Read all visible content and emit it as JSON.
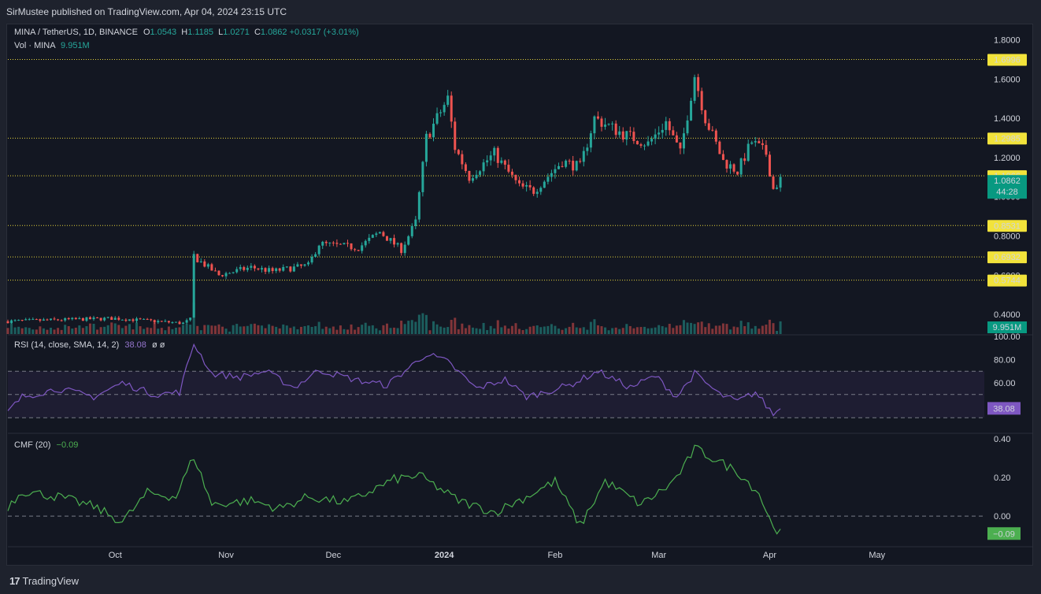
{
  "header": {
    "publisher": "SirMustee published on TradingView.com, Apr 04, 2024 23:15 UTC"
  },
  "symbol": {
    "name": "MINA / TetherUS, 1D, BINANCE",
    "o_label": "O",
    "o": "1.0543",
    "h_label": "H",
    "h": "1.1185",
    "l_label": "L",
    "l": "1.0271",
    "c_label": "C",
    "c": "1.0862",
    "change": "+0.0317 (+3.01%)"
  },
  "volume_legend": {
    "label": "Vol · MINA",
    "value": "9.951M"
  },
  "rsi_legend": {
    "label": "RSI (14, close, SMA, 14, 2)",
    "value": "38.08",
    "extra": "ø ø"
  },
  "cmf_legend": {
    "label": "CMF (20)",
    "value": "−0.09"
  },
  "footer": {
    "brand": "TradingView"
  },
  "colors": {
    "up": "#26a69a",
    "down": "#ef5350",
    "rsi": "#7e57c2",
    "cmf": "#4caf50",
    "level": "#e5d33b",
    "bg": "#131722"
  },
  "chart_data": [
    {
      "type": "candlestick",
      "title": "MINA / TetherUS, 1D, BINANCE",
      "x_tick_labels": [
        "Oct",
        "Nov",
        "Dec",
        "2024",
        "Feb",
        "Mar",
        "Apr",
        "May"
      ],
      "y_tick_labels": [
        "1.8000",
        "1.6000",
        "1.4000",
        "1.2000",
        "1.0000",
        "0.8000",
        "0.6000",
        "0.4000"
      ],
      "ylim": [
        0.3,
        1.85
      ],
      "price_levels": [
        "1.6996",
        "1.2985",
        "1.1066",
        "0.8531",
        "0.6932",
        "0.5744"
      ],
      "last_price": {
        "value": "1.0862",
        "countdown": "44:28"
      },
      "volume_label": "9.951M",
      "anchors": [
        {
          "date": "2023-09-01",
          "close": 0.365
        },
        {
          "date": "2023-10-01",
          "close": 0.38
        },
        {
          "date": "2023-10-20",
          "close": 0.355
        },
        {
          "date": "2023-10-22",
          "close": 0.375
        },
        {
          "date": "2023-10-23",
          "close": 0.7
        },
        {
          "date": "2023-10-24",
          "close": 0.68
        },
        {
          "date": "2023-10-30",
          "close": 0.6
        },
        {
          "date": "2023-11-08",
          "close": 0.64
        },
        {
          "date": "2023-11-14",
          "close": 0.62
        },
        {
          "date": "2023-11-24",
          "close": 0.65
        },
        {
          "date": "2023-11-27",
          "close": 0.76
        },
        {
          "date": "2023-12-08",
          "close": 0.74
        },
        {
          "date": "2023-12-14",
          "close": 0.82
        },
        {
          "date": "2023-12-20",
          "close": 0.73
        },
        {
          "date": "2023-12-24",
          "close": 0.87
        },
        {
          "date": "2023-12-27",
          "close": 1.3
        },
        {
          "date": "2024-01-02",
          "close": 1.5
        },
        {
          "date": "2024-01-04",
          "close": 1.25
        },
        {
          "date": "2024-01-08",
          "close": 1.1
        },
        {
          "date": "2024-01-15",
          "close": 1.22
        },
        {
          "date": "2024-01-22",
          "close": 1.05
        },
        {
          "date": "2024-01-26",
          "close": 1.03
        },
        {
          "date": "2024-02-03",
          "close": 1.18
        },
        {
          "date": "2024-02-08",
          "close": 1.15
        },
        {
          "date": "2024-02-12",
          "close": 1.4
        },
        {
          "date": "2024-02-20",
          "close": 1.32
        },
        {
          "date": "2024-02-27",
          "close": 1.27
        },
        {
          "date": "2024-03-03",
          "close": 1.38
        },
        {
          "date": "2024-03-07",
          "close": 1.22
        },
        {
          "date": "2024-03-11",
          "close": 1.62
        },
        {
          "date": "2024-03-14",
          "close": 1.4
        },
        {
          "date": "2024-03-19",
          "close": 1.18
        },
        {
          "date": "2024-03-23",
          "close": 1.13
        },
        {
          "date": "2024-03-27",
          "close": 1.28
        },
        {
          "date": "2024-03-31",
          "close": 1.22
        },
        {
          "date": "2024-04-02",
          "close": 1.04
        },
        {
          "date": "2024-04-04",
          "close": 1.0862
        }
      ]
    },
    {
      "type": "line",
      "title": "RSI (14, close, SMA, 14, 2)",
      "y_tick_labels": [
        "100.00",
        "80.00",
        "60.00"
      ],
      "ylim": [
        18,
        100
      ],
      "bands": [
        70,
        50,
        30
      ],
      "current": "38.08",
      "anchors": [
        {
          "date": "2023-09-01",
          "value": 35
        },
        {
          "date": "2023-09-05",
          "value": 48
        },
        {
          "date": "2023-09-15",
          "value": 55
        },
        {
          "date": "2023-09-25",
          "value": 48
        },
        {
          "date": "2023-10-03",
          "value": 60
        },
        {
          "date": "2023-10-12",
          "value": 50
        },
        {
          "date": "2023-10-19",
          "value": 52
        },
        {
          "date": "2023-10-23",
          "value": 94
        },
        {
          "date": "2023-10-28",
          "value": 68
        },
        {
          "date": "2023-11-05",
          "value": 65
        },
        {
          "date": "2023-11-12",
          "value": 70
        },
        {
          "date": "2023-11-20",
          "value": 56
        },
        {
          "date": "2023-11-27",
          "value": 71
        },
        {
          "date": "2023-12-08",
          "value": 62
        },
        {
          "date": "2023-12-16",
          "value": 58
        },
        {
          "date": "2023-12-27",
          "value": 85
        },
        {
          "date": "2024-01-02",
          "value": 78
        },
        {
          "date": "2024-01-10",
          "value": 55
        },
        {
          "date": "2024-01-18",
          "value": 63
        },
        {
          "date": "2024-01-24",
          "value": 48
        },
        {
          "date": "2024-02-05",
          "value": 58
        },
        {
          "date": "2024-02-13",
          "value": 70
        },
        {
          "date": "2024-02-22",
          "value": 56
        },
        {
          "date": "2024-02-29",
          "value": 66
        },
        {
          "date": "2024-03-06",
          "value": 48
        },
        {
          "date": "2024-03-11",
          "value": 68
        },
        {
          "date": "2024-03-18",
          "value": 50
        },
        {
          "date": "2024-03-23",
          "value": 44
        },
        {
          "date": "2024-03-28",
          "value": 52
        },
        {
          "date": "2024-04-02",
          "value": 33
        },
        {
          "date": "2024-04-04",
          "value": 38.08
        }
      ]
    },
    {
      "type": "line",
      "title": "CMF (20)",
      "y_tick_labels": [
        "0.40",
        "0.20",
        "0.00"
      ],
      "ylim": [
        -0.15,
        0.42
      ],
      "zero_line": 0,
      "current": "−0.09",
      "anchors": [
        {
          "date": "2023-09-01",
          "value": 0.05
        },
        {
          "date": "2023-09-05",
          "value": 0.13
        },
        {
          "date": "2023-09-15",
          "value": 0.1
        },
        {
          "date": "2023-09-25",
          "value": 0.05
        },
        {
          "date": "2023-10-03",
          "value": -0.03
        },
        {
          "date": "2023-10-10",
          "value": 0.12
        },
        {
          "date": "2023-10-18",
          "value": 0.1
        },
        {
          "date": "2023-10-23",
          "value": 0.31
        },
        {
          "date": "2023-10-28",
          "value": 0.06
        },
        {
          "date": "2023-11-08",
          "value": 0.08
        },
        {
          "date": "2023-11-16",
          "value": 0.04
        },
        {
          "date": "2023-11-24",
          "value": 0.1
        },
        {
          "date": "2023-12-05",
          "value": 0.07
        },
        {
          "date": "2023-12-18",
          "value": 0.19
        },
        {
          "date": "2023-12-25",
          "value": 0.21
        },
        {
          "date": "2024-01-05",
          "value": 0.08
        },
        {
          "date": "2024-01-15",
          "value": 0.02
        },
        {
          "date": "2024-01-24",
          "value": 0.1
        },
        {
          "date": "2024-02-01",
          "value": 0.18
        },
        {
          "date": "2024-02-08",
          "value": -0.05
        },
        {
          "date": "2024-02-15",
          "value": 0.18
        },
        {
          "date": "2024-02-25",
          "value": 0.06
        },
        {
          "date": "2024-03-04",
          "value": 0.16
        },
        {
          "date": "2024-03-08",
          "value": 0.25
        },
        {
          "date": "2024-03-11",
          "value": 0.35
        },
        {
          "date": "2024-03-16",
          "value": 0.3
        },
        {
          "date": "2024-03-23",
          "value": 0.23
        },
        {
          "date": "2024-03-29",
          "value": 0.12
        },
        {
          "date": "2024-04-01",
          "value": -0.02
        },
        {
          "date": "2024-04-04",
          "value": -0.09
        }
      ]
    }
  ]
}
